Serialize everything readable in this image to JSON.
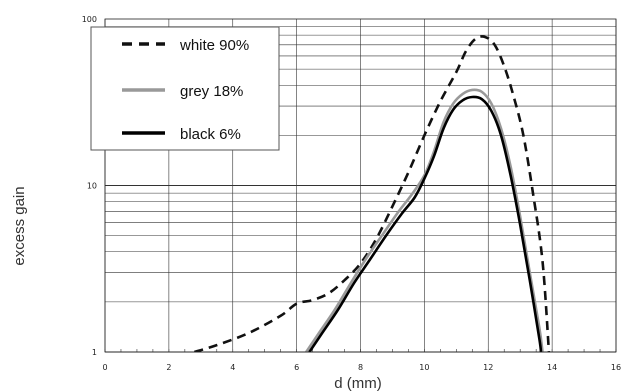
{
  "chart_data": {
    "type": "line",
    "xlabel": "d (mm)",
    "ylabel": "excess gain",
    "xlim": [
      0,
      16
    ],
    "ylim": [
      1,
      100
    ],
    "yscale": "log",
    "grid": true,
    "legend_position": "top-left",
    "x_ticks": [
      "0",
      "2",
      "4",
      "6",
      "8",
      "10",
      "12",
      "14",
      "16"
    ],
    "y_ticks": [
      "1",
      "10",
      "100"
    ],
    "series": [
      {
        "name": "white 90%",
        "color": "#111111",
        "style": "dashed",
        "points": [
          [
            2.8,
            1.0
          ],
          [
            3.5,
            1.1
          ],
          [
            4.5,
            1.3
          ],
          [
            5.5,
            1.65
          ],
          [
            6.0,
            1.95
          ],
          [
            6.5,
            2.05
          ],
          [
            7.0,
            2.25
          ],
          [
            7.5,
            2.7
          ],
          [
            8.0,
            3.4
          ],
          [
            8.5,
            4.8
          ],
          [
            9.0,
            7.5
          ],
          [
            9.5,
            12
          ],
          [
            10.0,
            20
          ],
          [
            10.5,
            32
          ],
          [
            11.0,
            48
          ],
          [
            11.3,
            64
          ],
          [
            11.6,
            76
          ],
          [
            11.9,
            78
          ],
          [
            12.2,
            70
          ],
          [
            12.5,
            52
          ],
          [
            12.8,
            34
          ],
          [
            13.1,
            20
          ],
          [
            13.4,
            9
          ],
          [
            13.7,
            3.5
          ],
          [
            13.9,
            1.0
          ]
        ]
      },
      {
        "name": "grey 18%",
        "color": "#999999",
        "style": "solid",
        "points": [
          [
            6.3,
            1.0
          ],
          [
            6.7,
            1.3
          ],
          [
            7.2,
            1.8
          ],
          [
            7.7,
            2.6
          ],
          [
            8.2,
            3.7
          ],
          [
            8.7,
            5.1
          ],
          [
            9.2,
            7.0
          ],
          [
            9.6,
            8.8
          ],
          [
            10.0,
            11.5
          ],
          [
            10.3,
            16
          ],
          [
            10.6,
            24
          ],
          [
            10.9,
            31
          ],
          [
            11.2,
            35.5
          ],
          [
            11.5,
            37.5
          ],
          [
            11.8,
            36.5
          ],
          [
            12.1,
            31
          ],
          [
            12.4,
            22
          ],
          [
            12.7,
            13
          ],
          [
            13.0,
            6.5
          ],
          [
            13.3,
            3
          ],
          [
            13.6,
            1.4
          ],
          [
            13.7,
            1.0
          ]
        ]
      },
      {
        "name": "black 6%",
        "color": "#000000",
        "style": "solid",
        "points": [
          [
            6.4,
            1.0
          ],
          [
            6.8,
            1.3
          ],
          [
            7.3,
            1.8
          ],
          [
            7.8,
            2.6
          ],
          [
            8.3,
            3.6
          ],
          [
            8.8,
            5.0
          ],
          [
            9.3,
            6.8
          ],
          [
            9.7,
            8.5
          ],
          [
            10.0,
            11
          ],
          [
            10.3,
            15
          ],
          [
            10.6,
            22
          ],
          [
            10.9,
            28.5
          ],
          [
            11.2,
            32.5
          ],
          [
            11.5,
            34
          ],
          [
            11.8,
            33
          ],
          [
            12.1,
            28
          ],
          [
            12.4,
            20
          ],
          [
            12.7,
            11.5
          ],
          [
            13.0,
            5.8
          ],
          [
            13.3,
            2.7
          ],
          [
            13.6,
            1.2
          ],
          [
            13.65,
            1.0
          ]
        ]
      }
    ]
  }
}
